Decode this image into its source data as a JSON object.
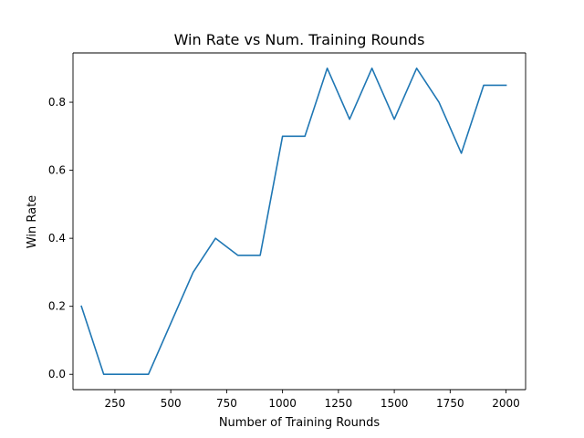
{
  "chart_data": {
    "type": "line",
    "title": "Win Rate vs Num. Training Rounds",
    "xlabel": "Number of Training Rounds",
    "ylabel": "Win Rate",
    "xlim": [
      62.5,
      2087.5
    ],
    "ylim": [
      -0.045,
      0.945
    ],
    "xticks": [
      250,
      500,
      750,
      1000,
      1250,
      1500,
      1750,
      2000
    ],
    "xtick_labels": [
      "250",
      "500",
      "750",
      "1000",
      "1250",
      "1500",
      "1750",
      "2000"
    ],
    "yticks": [
      0.0,
      0.2,
      0.4,
      0.6,
      0.8
    ],
    "ytick_labels": [
      "0.0",
      "0.2",
      "0.4",
      "0.6",
      "0.8"
    ],
    "grid": false,
    "legend": false,
    "series": [
      {
        "color": "#1f77b4",
        "x": [
          100,
          200,
          300,
          400,
          500,
          600,
          700,
          800,
          900,
          1000,
          1100,
          1200,
          1300,
          1400,
          1500,
          1600,
          1700,
          1800,
          1900,
          2000
        ],
        "y": [
          0.2,
          0.0,
          0.0,
          0.0,
          0.15,
          0.3,
          0.4,
          0.35,
          0.35,
          0.7,
          0.7,
          0.9,
          0.75,
          0.9,
          0.75,
          0.9,
          0.8,
          0.65,
          0.85,
          0.85
        ]
      }
    ]
  }
}
